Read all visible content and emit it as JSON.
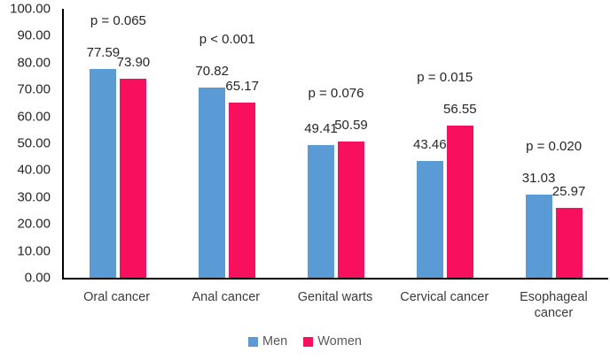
{
  "figure": {
    "background": "#ffffff",
    "title": ""
  },
  "colors": {
    "axis_line": "#000000",
    "tick_text": "#262626",
    "annotation_text": "#262626",
    "category_text": "#3b3b3b",
    "legend_text": "#595959",
    "men": "#5B9BD5",
    "women": "#F8105F"
  },
  "chart_data": {
    "type": "bar",
    "title": "",
    "xlabel": "",
    "ylabel": "",
    "categories": [
      "Oral cancer",
      "Anal cancer",
      "Genital warts",
      "Cervical cancer",
      "Esophageal cancer"
    ],
    "series": [
      {
        "name": "Men",
        "color": "#5B9BD5",
        "values": [
          77.59,
          70.82,
          49.41,
          43.46,
          31.03
        ]
      },
      {
        "name": "Women",
        "color": "#F8105F",
        "values": [
          73.9,
          65.17,
          50.59,
          56.55,
          25.97
        ]
      }
    ],
    "value_labels": [
      [
        "77.59",
        "73.90"
      ],
      [
        "70.82",
        "65.17"
      ],
      [
        "49.41",
        "50.59"
      ],
      [
        "43.46",
        "56.55"
      ],
      [
        "31.03",
        "25.97"
      ]
    ],
    "annotations": [
      "p = 0.065",
      "p < 0.001",
      "p = 0.076",
      "p = 0.015",
      "p = 0.020"
    ],
    "y_tick_labels": [
      "100.00",
      "90.00",
      "80.00",
      "70.00",
      "60.00",
      "50.00",
      "40.00",
      "30.00",
      "20.00",
      "10.00",
      "0.00"
    ],
    "ylim": [
      0,
      100
    ],
    "grid": false,
    "legend_position": "bottom"
  }
}
